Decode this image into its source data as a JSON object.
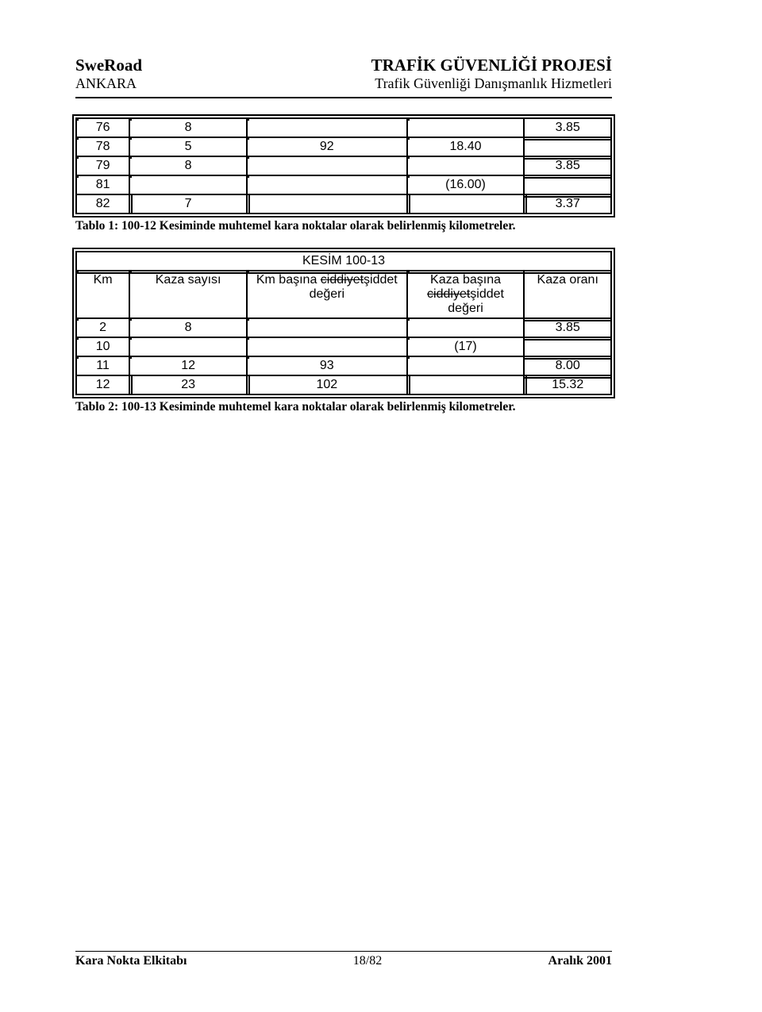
{
  "header": {
    "left1": "SweRoad",
    "left2": "ANKARA",
    "right1": "TRAFİK GÜVENLİĞİ PROJESİ",
    "right2": "Trafik Güvenliği Danışmanlık Hizmetleri"
  },
  "table1": {
    "col_widths_pct": [
      10,
      22,
      30,
      22,
      16
    ],
    "rows": [
      [
        "76",
        "8",
        "",
        "",
        "3.85"
      ],
      [
        "78",
        "5",
        "92",
        "18.40",
        ""
      ],
      [
        "79",
        "8",
        "",
        "",
        "3.85"
      ],
      [
        "81",
        "",
        "",
        "(16.00)",
        ""
      ],
      [
        "82",
        "7",
        "",
        "",
        "3.37"
      ]
    ]
  },
  "caption1": "Tablo 1: 100-12 Kesiminde muhtemel kara noktalar olarak belirlenmiş kilometreler.",
  "table2_title": "KESİM 100-13",
  "table2_headers": {
    "c0": "Km",
    "c1": "Kaza sayısı",
    "c2_pre": "Km başına ",
    "c2_strike": "ciddiyet",
    "c2_post": "şiddet değeri",
    "c3_line1": "Kaza başına",
    "c3_strike": "ciddiyet",
    "c3_post": "şiddet",
    "c3_line3": "değeri",
    "c4": "Kaza oranı"
  },
  "table2_rows": [
    [
      "2",
      "8",
      "",
      "",
      "3.85"
    ],
    [
      "10",
      "",
      "",
      "(17)",
      ""
    ],
    [
      "11",
      "12",
      "93",
      "",
      "8.00"
    ],
    [
      "12",
      "23",
      "102",
      "",
      "15.32"
    ]
  ],
  "caption2": "Tablo 2: 100-13 Kesiminde muhtemel kara noktalar olarak belirlenmiş kilometreler.",
  "footer": {
    "left": "Kara Nokta Elkitabı",
    "center": "18/82",
    "right": "Aralık 2001"
  }
}
